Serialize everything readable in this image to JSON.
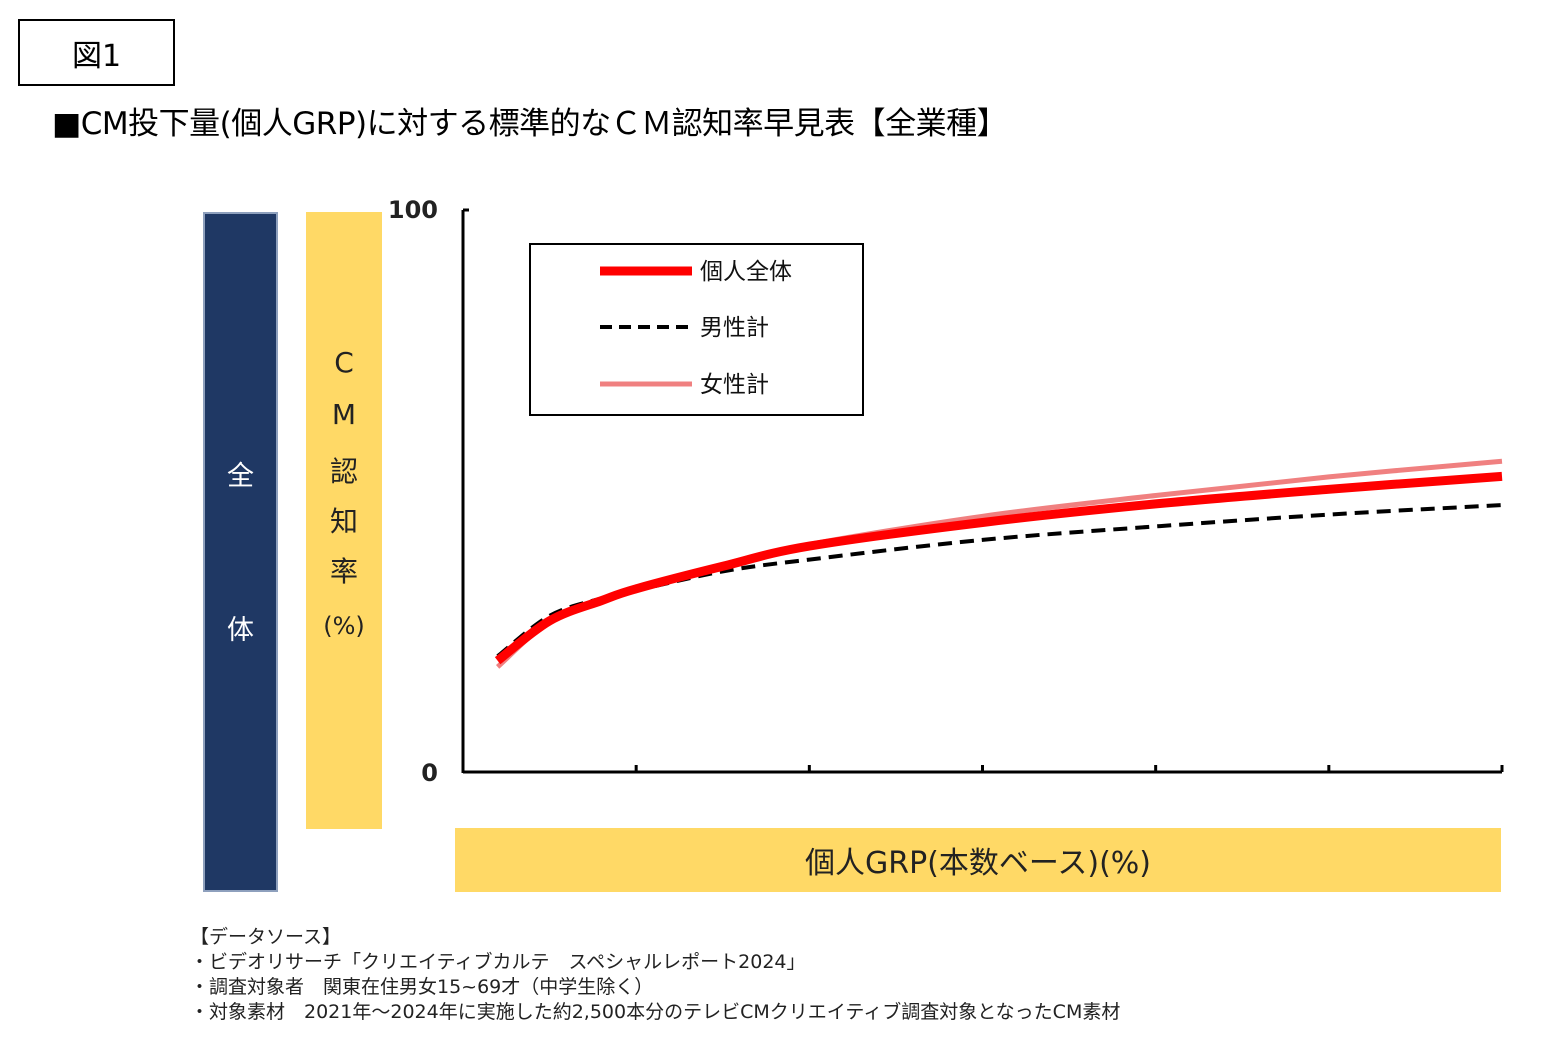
{
  "figure_label": "図1",
  "title": "■CM投下量(個人GRP)に対する標準的なＣＭ認知率早見表【全業種】",
  "side_label": {
    "top": "全",
    "bottom": "体"
  },
  "yaxis_label_chars": [
    "C",
    "M",
    "認",
    "知",
    "率"
  ],
  "yaxis_label_unit": "(%)",
  "xaxis_label": "個人GRP(本数ベース)(%)",
  "chart_data": {
    "type": "line",
    "title": "",
    "xlabel": "個人GRP(本数ベース)(%)",
    "ylabel": "CM認知率(%)",
    "ylim": [
      0,
      100
    ],
    "y_ticks": [
      "100",
      "0"
    ],
    "x_tick_labels": [],
    "x": [
      0.2,
      0.5,
      0.8,
      1,
      1.5,
      2,
      3,
      4,
      5,
      6
    ],
    "grid": false,
    "legend_position": "top-left",
    "series": [
      {
        "name": "個人全体",
        "color": "#ff0000",
        "style": "solid-thick",
        "values": [
          19.8,
          26.9,
          30.5,
          32.6,
          36.6,
          40.2,
          44.4,
          47.7,
          50.3,
          52.6
        ]
      },
      {
        "name": "男性計",
        "color": "#000000",
        "style": "dashed",
        "values": [
          20.6,
          27.8,
          30.9,
          32.3,
          35.7,
          37.8,
          41.3,
          43.7,
          45.8,
          47.5
        ]
      },
      {
        "name": "女性計",
        "color": "#f08080",
        "style": "solid",
        "values": [
          18.7,
          26.8,
          30.4,
          32.4,
          36.9,
          40.5,
          45.5,
          49.2,
          52.5,
          55.3
        ]
      }
    ]
  },
  "sources": {
    "heading": "【データソース】",
    "lines": [
      "・ビデオリサーチ「クリエイティブカルテ　スペシャルレポート2024」",
      "・調査対象者　関東在住男女15~69才（中学生除く）",
      "・対象素材　2021年～2024年に実施した約2,500本分のテレビCMクリエイティブ調査対象となったCM素材"
    ]
  }
}
